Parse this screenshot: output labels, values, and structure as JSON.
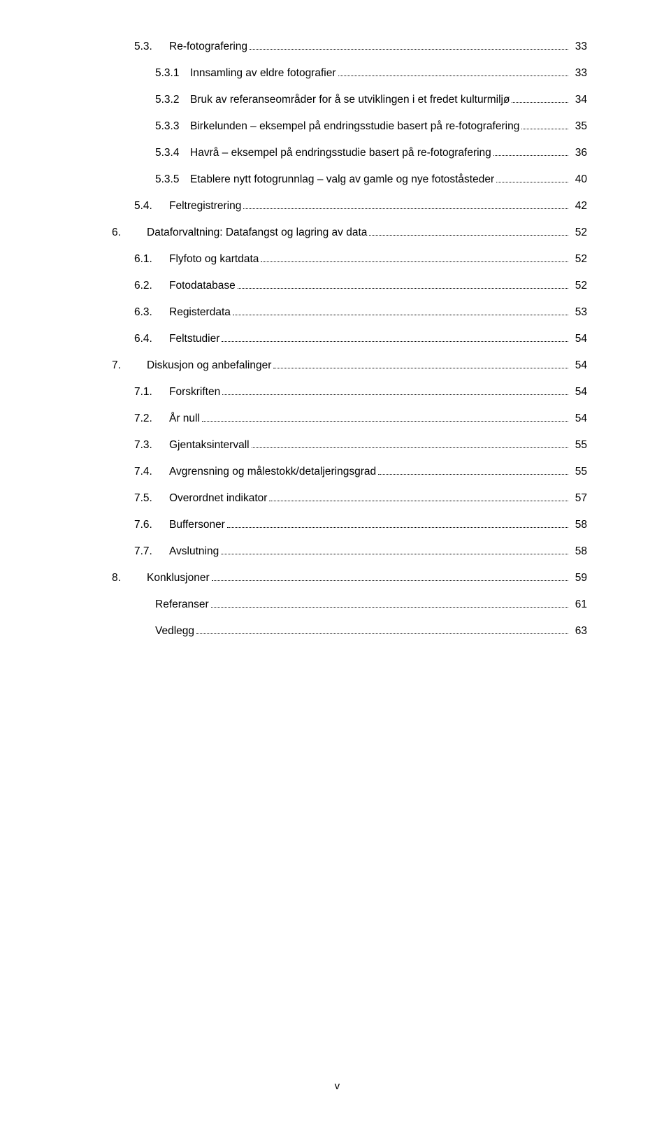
{
  "toc": [
    {
      "level": 2,
      "num": "5.3.",
      "title": "Re-fotografering",
      "page": "33"
    },
    {
      "level": 3,
      "num": "5.3.1",
      "title": "Innsamling av eldre fotografier",
      "page": "33"
    },
    {
      "level": 3,
      "num": "5.3.2",
      "title": "Bruk av referanseområder for å se utviklingen i et fredet kulturmiljø",
      "page": "34"
    },
    {
      "level": 3,
      "num": "5.3.3",
      "title": "Birkelunden – eksempel på endringsstudie basert på re-fotografering",
      "page": "35"
    },
    {
      "level": 3,
      "num": "5.3.4",
      "title": "Havrå – eksempel på endringsstudie basert på re-fotografering",
      "page": "36"
    },
    {
      "level": 3,
      "num": "5.3.5",
      "title": "Etablere nytt fotogrunnlag – valg av gamle og nye fotoståsteder",
      "page": "40"
    },
    {
      "level": 2,
      "num": "5.4.",
      "title": "Feltregistrering",
      "page": "42"
    },
    {
      "level": 1,
      "num": "6.",
      "title": "Dataforvaltning: Datafangst og lagring av data",
      "page": " 52"
    },
    {
      "level": 2,
      "num": "6.1.",
      "title": "Flyfoto og kartdata",
      "page": "52"
    },
    {
      "level": 2,
      "num": "6.2.",
      "title": "Fotodatabase",
      "page": "52"
    },
    {
      "level": 2,
      "num": "6.3.",
      "title": "Registerdata",
      "page": "53"
    },
    {
      "level": 2,
      "num": "6.4.",
      "title": "Feltstudier",
      "page": "54"
    },
    {
      "level": 1,
      "num": "7.",
      "title": "Diskusjon og anbefalinger",
      "page": " 54"
    },
    {
      "level": 2,
      "num": "7.1.",
      "title": "Forskriften",
      "page": "54"
    },
    {
      "level": 2,
      "num": "7.2.",
      "title": "År null",
      "page": "54"
    },
    {
      "level": 2,
      "num": "7.3.",
      "title": "Gjentaksintervall",
      "page": "55"
    },
    {
      "level": 2,
      "num": "7.4.",
      "title": "Avgrensning og målestokk/detaljeringsgrad",
      "page": "55"
    },
    {
      "level": 2,
      "num": "7.5.",
      "title": "Overordnet indikator",
      "page": "57"
    },
    {
      "level": 2,
      "num": "7.6.",
      "title": "Buffersoner",
      "page": "58"
    },
    {
      "level": 2,
      "num": "7.7.",
      "title": "Avslutning",
      "page": "58"
    },
    {
      "level": 1,
      "num": "8.",
      "title": "Konklusjoner",
      "page": " 59"
    },
    {
      "level": "2-no-num",
      "num": "",
      "title": "Referanser",
      "page": " 61"
    },
    {
      "level": "2-no-num",
      "num": "",
      "title": "Vedlegg",
      "page": " 63"
    }
  ],
  "pageNumber": "v"
}
